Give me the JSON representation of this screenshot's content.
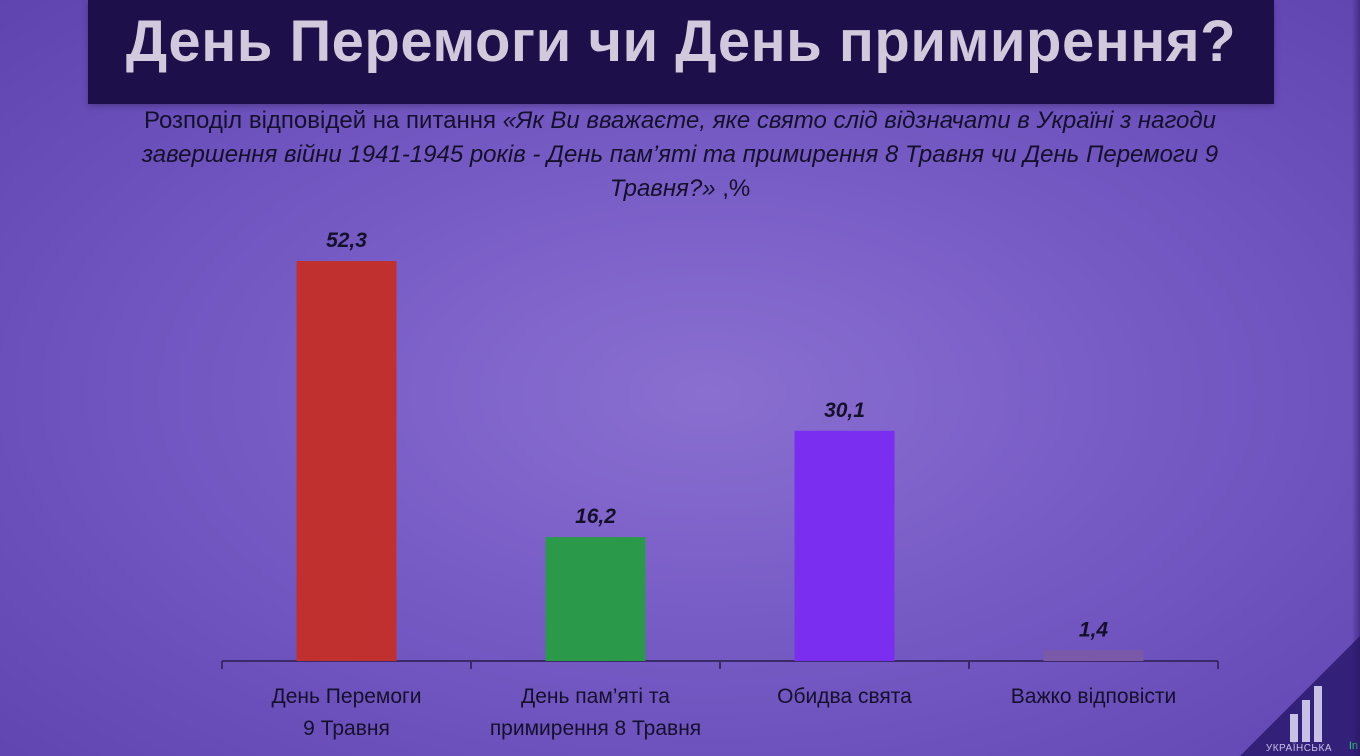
{
  "header": {
    "title": "День Перемоги чи День примирення?"
  },
  "subtitle": {
    "lead": "Розподіл відповідей на питання ",
    "question": "«Як Ви вважаєте, яке свято слід відзначати в Україні з нагоди завершення війни 1941-1945 років - День пам’яті та примирення 8 Травня чи День Перемоги 9 Травня?»",
    "unit": " ,%"
  },
  "colors": {
    "background": "#7b5fc8",
    "title_bar": "#1c0f4a",
    "title_text": "#d2cadc",
    "bar_1": "#c0302f",
    "bar_2": "#2a9a4a",
    "bar_3": "#7a2ff0",
    "bar_4": "#7a5aa8",
    "axis": "#3a2a6a",
    "label_text": "#15102a"
  },
  "chart_data": {
    "type": "bar",
    "categories": [
      [
        "День Перемоги",
        "9 Травня"
      ],
      [
        "День пам’яті та",
        "примирення 8 Травня"
      ],
      [
        "Обидва свята"
      ],
      [
        "Важко відповісти"
      ]
    ],
    "values": [
      52.3,
      16.2,
      30.1,
      1.4
    ],
    "value_labels": [
      "52,3",
      "16,2",
      "30,1",
      "1,4"
    ],
    "ylim": [
      0,
      55
    ],
    "grid": false,
    "legend": "none"
  },
  "logo": {
    "name": "ukrainska-pravda-logo",
    "text": "УКРАЇНСЬКА",
    "corner_mark": "In"
  }
}
